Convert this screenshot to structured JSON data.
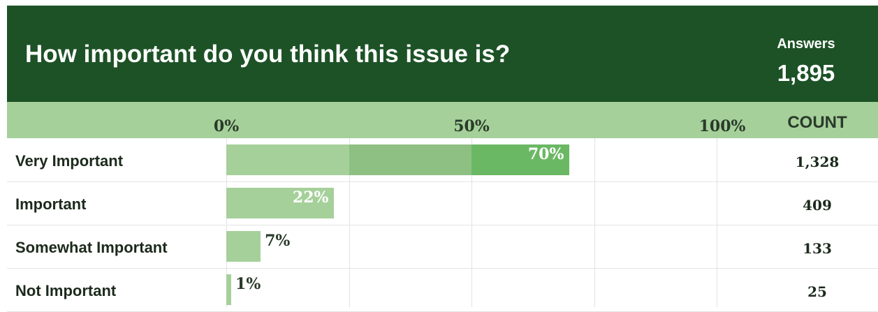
{
  "header": {
    "title": "How important do you think this issue is?",
    "answers_label": "Answers",
    "answers_total": "1,895"
  },
  "axis": {
    "ticks": [
      "0%",
      "50%",
      "100%"
    ],
    "count_header": "COUNT"
  },
  "colors": {
    "header_bg": "#1d5226",
    "axis_bg": "#a5d09a",
    "bar_light": "#a5d09a",
    "bar_mid": "#8dc082",
    "bar_dark": "#6bb864"
  },
  "chart_data": {
    "type": "bar",
    "title": "How important do you think this issue is?",
    "orientation": "horizontal",
    "categories": [
      "Very Important",
      "Important",
      "Somewhat Important",
      "Not Important"
    ],
    "values": [
      70,
      22,
      7,
      1
    ],
    "value_labels": [
      "70%",
      "22%",
      "7%",
      "1%"
    ],
    "counts": [
      "1,328",
      "409",
      "133",
      "25"
    ],
    "xlim": [
      0,
      100
    ],
    "grid": true
  }
}
